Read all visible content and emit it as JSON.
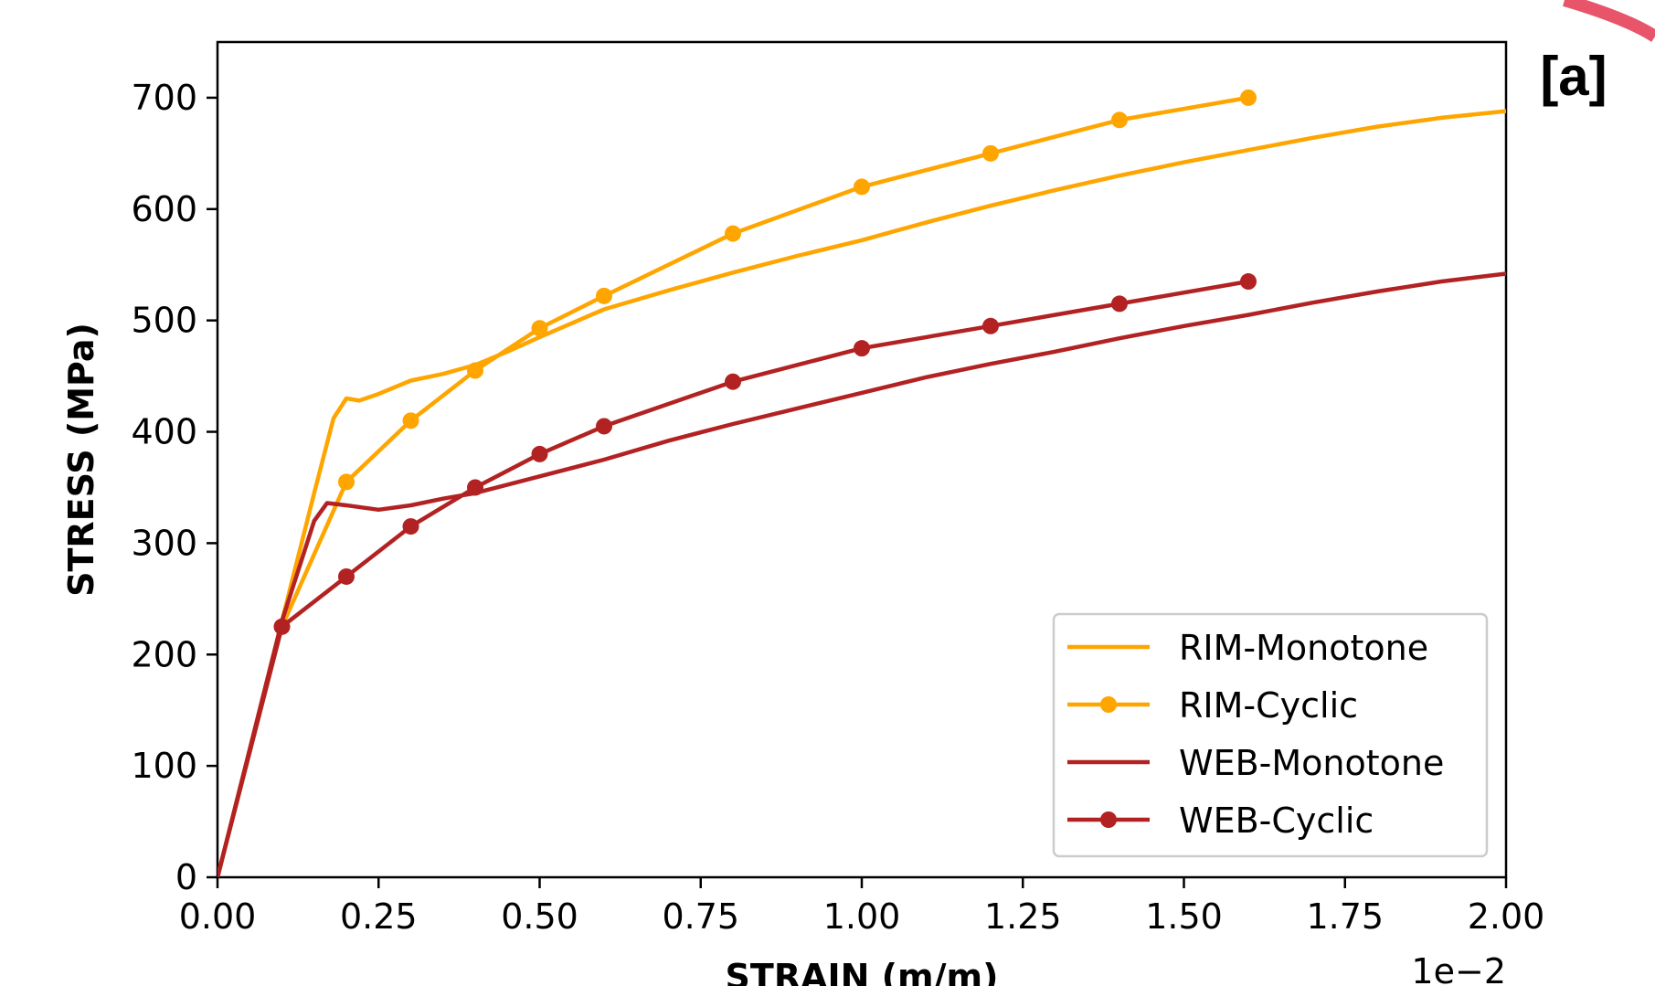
{
  "panel_tag": "[a]",
  "chart_data": {
    "type": "line",
    "xlabel": "STRAIN (m/m)",
    "ylabel": "STRESS (MPa)",
    "x_offset_label": "1e−2",
    "xlim": [
      0.0,
      2.0
    ],
    "ylim": [
      0,
      750
    ],
    "x_ticks": [
      0.0,
      0.25,
      0.5,
      0.75,
      1.0,
      1.25,
      1.5,
      1.75,
      2.0
    ],
    "x_tick_labels": [
      "0.00",
      "0.25",
      "0.50",
      "0.75",
      "1.00",
      "1.25",
      "1.50",
      "1.75",
      "2.00"
    ],
    "y_ticks": [
      0,
      100,
      200,
      300,
      400,
      500,
      600,
      700
    ],
    "y_tick_labels": [
      "0",
      "100",
      "200",
      "300",
      "400",
      "500",
      "600",
      "700"
    ],
    "grid": false,
    "legend_position": "bottom-right",
    "series": [
      {
        "name": "RIM-Monotone",
        "color": "#ffa500",
        "marker": false,
        "x": [
          0.0,
          0.05,
          0.1,
          0.15,
          0.18,
          0.2,
          0.22,
          0.25,
          0.3,
          0.35,
          0.4,
          0.45,
          0.5,
          0.6,
          0.7,
          0.8,
          0.9,
          1.0,
          1.1,
          1.2,
          1.3,
          1.4,
          1.5,
          1.6,
          1.7,
          1.8,
          1.9,
          2.0
        ],
        "y": [
          0,
          115,
          230,
          345,
          412,
          430,
          428,
          434,
          446,
          452,
          460,
          472,
          485,
          510,
          527,
          543,
          558,
          572,
          588,
          603,
          617,
          630,
          642,
          653,
          664,
          674,
          682,
          688
        ]
      },
      {
        "name": "RIM-Cyclic",
        "color": "#ffa500",
        "marker": true,
        "x": [
          0.0,
          0.1,
          0.2,
          0.3,
          0.4,
          0.5,
          0.6,
          0.8,
          1.0,
          1.2,
          1.4,
          1.6
        ],
        "y": [
          0,
          225,
          355,
          410,
          455,
          493,
          522,
          578,
          620,
          650,
          680,
          700
        ]
      },
      {
        "name": "WEB-Monotone",
        "color": "#b22222",
        "marker": false,
        "x": [
          0.0,
          0.05,
          0.1,
          0.15,
          0.17,
          0.2,
          0.25,
          0.3,
          0.35,
          0.4,
          0.5,
          0.6,
          0.7,
          0.8,
          0.9,
          1.0,
          1.1,
          1.2,
          1.3,
          1.4,
          1.5,
          1.6,
          1.7,
          1.8,
          1.9,
          2.0
        ],
        "y": [
          0,
          115,
          230,
          320,
          336,
          334,
          330,
          334,
          340,
          345,
          360,
          375,
          392,
          407,
          421,
          435,
          449,
          461,
          472,
          484,
          495,
          505,
          516,
          526,
          535,
          542
        ]
      },
      {
        "name": "WEB-Cyclic",
        "color": "#b22222",
        "marker": true,
        "x": [
          0.0,
          0.1,
          0.2,
          0.3,
          0.4,
          0.5,
          0.6,
          0.8,
          1.0,
          1.2,
          1.4,
          1.6
        ],
        "y": [
          0,
          225,
          270,
          315,
          350,
          380,
          405,
          445,
          475,
          495,
          515,
          535
        ]
      }
    ]
  }
}
